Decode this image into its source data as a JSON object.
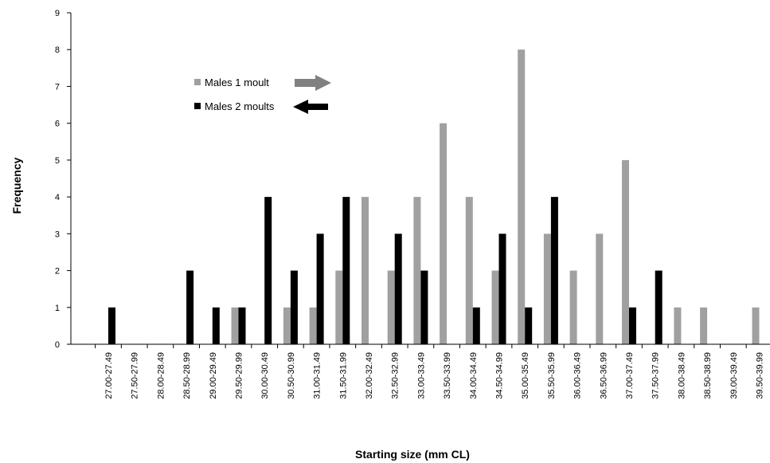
{
  "chart_data": {
    "type": "bar",
    "title": "",
    "xlabel": "Starting size (mm CL)",
    "ylabel": "Frequency",
    "ylim": [
      0,
      9
    ],
    "yticks": [
      0,
      1,
      2,
      3,
      4,
      5,
      6,
      7,
      8,
      9
    ],
    "grid": false,
    "legend_position": "upper-left",
    "categories": [
      "27.00-27.49",
      "27.50-27.99",
      "28.00-28.49",
      "28.50-28.99",
      "29.00-29.49",
      "29.50-29.99",
      "30.00-30.49",
      "30.50-30.99",
      "31.00-31.49",
      "31.50-31.99",
      "32.00-32.49",
      "32.50-32.99",
      "33.00-33.49",
      "33.50-33.99",
      "34.00-34.49",
      "34.50-34.99",
      "35.00-35.49",
      "35.50-35.99",
      "36.00-36.49",
      "36.50-36.99",
      "37.00-37.49",
      "37.50-37.99",
      "38.00-38.49",
      "38.50-38.99",
      "39.00-39.49",
      "39.50-39.99"
    ],
    "series": [
      {
        "name": "Males 1 moult",
        "color": "#a0a0a0",
        "arrow_color": "#808080",
        "arrow_direction": "right",
        "values": [
          0,
          0,
          0,
          0,
          0,
          1,
          0,
          1,
          1,
          2,
          4,
          2,
          4,
          6,
          4,
          2,
          8,
          3,
          2,
          3,
          5,
          0,
          1,
          1,
          0,
          1
        ]
      },
      {
        "name": "Males 2 moults",
        "color": "#000000",
        "arrow_color": "#000000",
        "arrow_direction": "left",
        "values": [
          1,
          0,
          0,
          2,
          1,
          1,
          4,
          2,
          3,
          4,
          0,
          3,
          2,
          0,
          1,
          3,
          1,
          4,
          0,
          0,
          1,
          2,
          0,
          0,
          0,
          0
        ]
      }
    ]
  }
}
